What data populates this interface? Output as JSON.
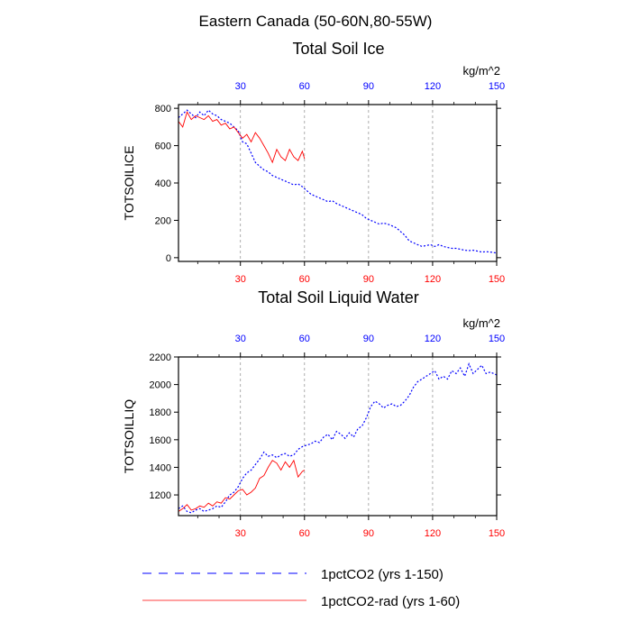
{
  "figure": {
    "title": "Eastern Canada (50-60N,80-55W)"
  },
  "legend": [
    {
      "label": "1pctCO2 (yrs 1-150)",
      "color": "#0000ff",
      "style": "dashed"
    },
    {
      "label": "1pctCO2-rad (yrs 1-60)",
      "color": "#ff0000",
      "style": "solid"
    }
  ],
  "colors": {
    "blue": "#0000ff",
    "red": "#ff0000",
    "grid": "#999999"
  },
  "chart_data": [
    {
      "type": "line",
      "title": "Total Soil Ice",
      "units": "kg/m^2",
      "ylabel": "TOTSOILICE",
      "xlim": [
        1,
        150
      ],
      "ylim": [
        -20,
        820
      ],
      "xticks": [
        30,
        60,
        90,
        120,
        150
      ],
      "yticks": [
        0,
        200,
        400,
        600,
        800
      ],
      "grid_x": [
        30,
        60,
        90,
        120
      ],
      "series": [
        {
          "name": "1pctCO2 (yrs 1-150)",
          "color": "#0000ff",
          "style": "dashed",
          "x": [
            1,
            3,
            5,
            7,
            9,
            11,
            13,
            15,
            17,
            19,
            21,
            23,
            25,
            27,
            29,
            31,
            33,
            35,
            37,
            39,
            41,
            43,
            45,
            47,
            49,
            51,
            53,
            55,
            57,
            59,
            61,
            63,
            65,
            67,
            69,
            71,
            73,
            75,
            77,
            79,
            81,
            83,
            85,
            87,
            89,
            91,
            93,
            95,
            97,
            99,
            101,
            103,
            105,
            107,
            109,
            111,
            113,
            115,
            117,
            119,
            121,
            123,
            125,
            127,
            129,
            131,
            133,
            135,
            137,
            139,
            141,
            143,
            145,
            147,
            150
          ],
          "values": [
            750,
            770,
            790,
            770,
            750,
            780,
            760,
            790,
            770,
            760,
            740,
            730,
            720,
            700,
            680,
            620,
            610,
            560,
            510,
            490,
            470,
            460,
            440,
            430,
            420,
            410,
            400,
            390,
            395,
            380,
            360,
            340,
            330,
            320,
            310,
            300,
            305,
            290,
            280,
            270,
            260,
            250,
            240,
            230,
            210,
            200,
            190,
            180,
            185,
            180,
            170,
            160,
            140,
            120,
            90,
            80,
            70,
            60,
            65,
            70,
            60,
            70,
            60,
            55,
            50,
            50,
            45,
            40,
            38,
            40,
            35,
            30,
            32,
            30,
            25
          ]
        },
        {
          "name": "1pctCO2-rad (yrs 1-60)",
          "color": "#ff0000",
          "style": "solid",
          "x": [
            1,
            3,
            5,
            7,
            9,
            11,
            13,
            15,
            17,
            19,
            21,
            23,
            25,
            27,
            29,
            31,
            33,
            35,
            37,
            39,
            41,
            43,
            45,
            47,
            49,
            51,
            53,
            55,
            57,
            59,
            60
          ],
          "values": [
            730,
            700,
            780,
            740,
            760,
            750,
            740,
            760,
            730,
            740,
            710,
            720,
            690,
            700,
            670,
            640,
            660,
            620,
            670,
            640,
            600,
            560,
            510,
            580,
            540,
            520,
            580,
            540,
            520,
            570,
            530
          ]
        }
      ]
    },
    {
      "type": "line",
      "title": "Total Soil Liquid Water",
      "units": "kg/m^2",
      "ylabel": "TOTSOILLIQ",
      "xlim": [
        1,
        150
      ],
      "ylim": [
        1050,
        2200
      ],
      "xticks": [
        30,
        60,
        90,
        120,
        150
      ],
      "yticks": [
        1200,
        1400,
        1600,
        1800,
        2000,
        2200
      ],
      "grid_x": [
        30,
        60,
        90,
        120
      ],
      "series": [
        {
          "name": "1pctCO2 (yrs 1-150)",
          "color": "#0000ff",
          "style": "dashed",
          "x": [
            1,
            3,
            5,
            7,
            9,
            11,
            13,
            15,
            17,
            19,
            21,
            23,
            25,
            27,
            29,
            31,
            33,
            35,
            37,
            39,
            41,
            43,
            45,
            47,
            49,
            51,
            53,
            55,
            57,
            59,
            61,
            63,
            65,
            67,
            69,
            71,
            73,
            75,
            77,
            79,
            81,
            83,
            85,
            87,
            89,
            91,
            93,
            95,
            97,
            99,
            101,
            103,
            105,
            107,
            109,
            111,
            113,
            115,
            117,
            119,
            121,
            123,
            125,
            127,
            129,
            131,
            133,
            135,
            137,
            139,
            141,
            143,
            145,
            147,
            150
          ],
          "values": [
            1100,
            1120,
            1080,
            1070,
            1090,
            1100,
            1080,
            1090,
            1100,
            1120,
            1110,
            1150,
            1200,
            1220,
            1260,
            1320,
            1360,
            1380,
            1420,
            1460,
            1510,
            1480,
            1490,
            1470,
            1490,
            1500,
            1480,
            1490,
            1530,
            1550,
            1560,
            1570,
            1590,
            1580,
            1620,
            1640,
            1600,
            1660,
            1640,
            1610,
            1650,
            1620,
            1680,
            1700,
            1760,
            1840,
            1880,
            1860,
            1830,
            1850,
            1860,
            1840,
            1850,
            1880,
            1920,
            1980,
            2020,
            2040,
            2060,
            2080,
            2100,
            2040,
            2060,
            2040,
            2100,
            2080,
            2120,
            2060,
            2150,
            2080,
            2110,
            2140,
            2080,
            2090,
            2070
          ]
        },
        {
          "name": "1pctCO2-rad (yrs 1-60)",
          "color": "#ff0000",
          "style": "solid",
          "x": [
            1,
            3,
            5,
            7,
            9,
            11,
            13,
            15,
            17,
            19,
            21,
            23,
            25,
            27,
            29,
            31,
            33,
            35,
            37,
            39,
            41,
            43,
            45,
            47,
            49,
            51,
            53,
            55,
            57,
            59,
            60
          ],
          "values": [
            1080,
            1100,
            1130,
            1090,
            1100,
            1120,
            1110,
            1140,
            1120,
            1150,
            1140,
            1180,
            1170,
            1200,
            1230,
            1240,
            1200,
            1220,
            1250,
            1320,
            1340,
            1400,
            1450,
            1430,
            1380,
            1440,
            1400,
            1450,
            1330,
            1370,
            1380
          ]
        }
      ]
    }
  ]
}
